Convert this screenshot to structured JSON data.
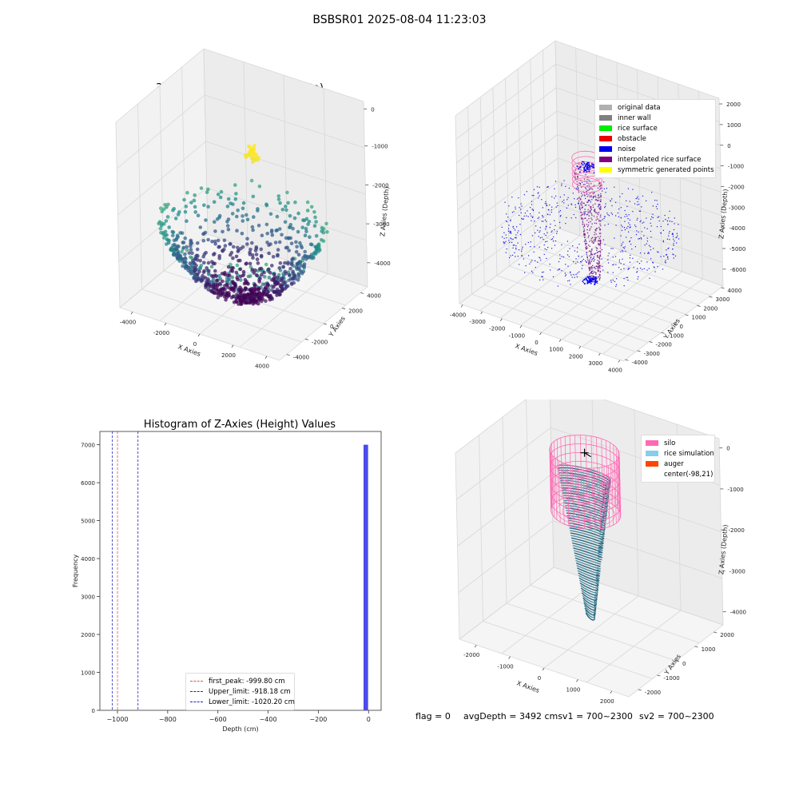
{
  "figure": {
    "suptitle": "BSBSR01 2025-08-04 11:23:03",
    "status": {
      "flag": "flag = 0",
      "avg_depth": "avgDepth = 3492 cmsv1 = 700~2300",
      "sv2": "sv2 = 700~2300"
    }
  },
  "chart_data": [
    {
      "type": "scatter",
      "projection": "3d",
      "title": "3D Plot of Silo Interior(row data)",
      "xlabel": "X Axies",
      "ylabel": "Y Axies",
      "zlabel": "Z Axies (Depth)",
      "x_ticks": [
        "-4000",
        "-2000",
        "0",
        "2000",
        "4000"
      ],
      "y_ticks": [
        "-4000",
        "-2000",
        "0",
        "2000",
        "4000"
      ],
      "z_ticks": [
        "0",
        "-1000",
        "-2000",
        "-3000",
        "-4000"
      ],
      "xlim": [
        -4500,
        4500
      ],
      "ylim": [
        -4500,
        4500
      ],
      "zlim": [
        -4600,
        200
      ],
      "colormap": "viridis",
      "grid": true,
      "shape": "bowl",
      "rim_z": -2700,
      "rim_radius": 4200,
      "bottom_z": -4500
    },
    {
      "type": "scatter",
      "projection": "3d",
      "title": "3D classify of Silo Interior",
      "xlabel": "X Axies",
      "ylabel": "Y Axies",
      "zlabel": "Z Axies (Depth)",
      "x_ticks": [
        "-4000",
        "-3000",
        "-2000",
        "-1000",
        "0",
        "1000",
        "2000",
        "3000",
        "4000"
      ],
      "y_ticks": [
        "-4000",
        "-3000",
        "-2000",
        "-1000",
        "0",
        "1000",
        "2000",
        "3000",
        "4000"
      ],
      "z_ticks": [
        "2000",
        "1000",
        "0",
        "-1000",
        "-2000",
        "-3000",
        "-4000",
        "-5000",
        "-6000"
      ],
      "xlim": [
        -4200,
        4200
      ],
      "ylim": [
        -4200,
        4200
      ],
      "zlim": [
        -6500,
        2300
      ],
      "legend": [
        {
          "label": "original data",
          "color": "#b0b0b0"
        },
        {
          "label": "inner wall",
          "color": "#808080"
        },
        {
          "label": "rice surface",
          "color": "#00ee00"
        },
        {
          "label": "obstacle",
          "color": "#ee0000"
        },
        {
          "label": "noise",
          "color": "#0000ee"
        },
        {
          "label": "interpolated rice surface",
          "color": "#800080"
        },
        {
          "label": "symmetric generated points",
          "color": "#ffff00"
        }
      ],
      "legend_loc": "upper right",
      "grid": true
    },
    {
      "type": "bar",
      "title": "Histogram of Z-Axies (Height) Values",
      "xlabel": "Depth (cm)",
      "ylabel": "Frequency",
      "xlim": [
        -1070,
        50
      ],
      "ylim": [
        0,
        7350
      ],
      "x_ticks": [
        -1000,
        -800,
        -600,
        -400,
        -200,
        0
      ],
      "y_ticks": [
        0,
        1000,
        2000,
        3000,
        4000,
        5000,
        6000,
        7000
      ],
      "bins": [
        {
          "x0": -20,
          "x1": -2,
          "count": 7000
        }
      ],
      "bar_color": "#4b4bef",
      "vlines": [
        {
          "label": "first_peak: -999.80 cm",
          "x": -999.8,
          "color": "#e05050"
        },
        {
          "label": "Upper_limit: -918.18 cm",
          "x": -918.18,
          "color": "#2020c0"
        },
        {
          "label": "Lower_limit: -1020.20 cm",
          "x": -1020.2,
          "color": "#2020c0"
        }
      ],
      "legend_loc": "lower center"
    },
    {
      "type": "surface",
      "projection": "3d",
      "title": "3D simulation of Silo Interior",
      "xlabel": "X Axies",
      "ylabel": "Y Axies",
      "zlabel": "Z Axies (Depth)",
      "x_ticks": [
        "-2000",
        "-1000",
        "0",
        "1000",
        "2000"
      ],
      "y_ticks": [
        "-2000",
        "-1000",
        "0",
        "1000",
        "2000"
      ],
      "z_ticks": [
        "0",
        "-1000",
        "-2000",
        "-3000",
        "-4000"
      ],
      "xlim": [
        -2500,
        2500
      ],
      "ylim": [
        -2500,
        2500
      ],
      "zlim": [
        -4600,
        300
      ],
      "legend": [
        {
          "label": "silo",
          "color": "#ff69b4"
        },
        {
          "label": "rice simulation",
          "color": "#87ceeb"
        },
        {
          "label": "auger",
          "color": "#ff4500"
        },
        {
          "label": "center(-98,21)",
          "color": "#ffffff"
        }
      ],
      "legend_loc": "upper right",
      "grid": true
    }
  ]
}
